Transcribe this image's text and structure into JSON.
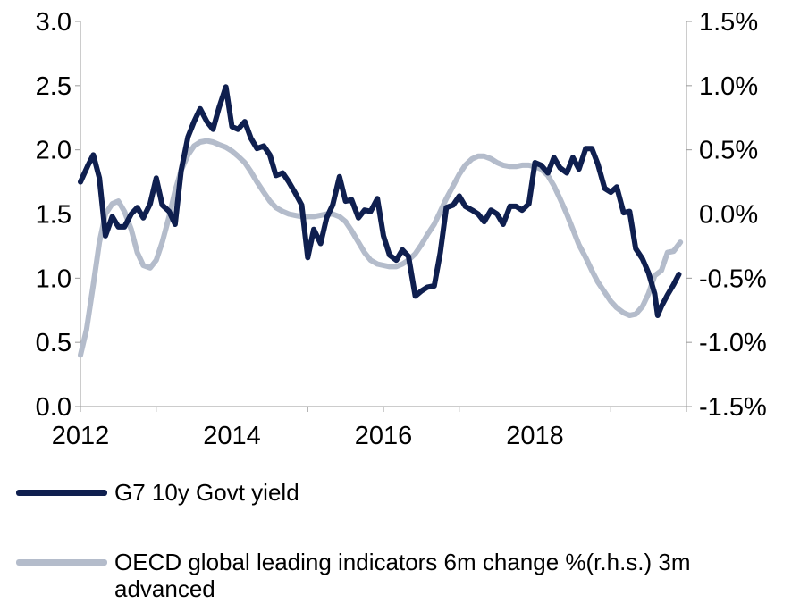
{
  "chart_data": {
    "type": "line",
    "x_ticks": [
      "2012",
      "2014",
      "2016",
      "2018"
    ],
    "y_left": {
      "ticks": [
        "0.0",
        "0.5",
        "1.0",
        "1.5",
        "2.0",
        "2.5",
        "3.0"
      ],
      "ylim": [
        0,
        3
      ]
    },
    "y_right": {
      "ticks": [
        "-1.5%",
        "-1.0%",
        "-0.5%",
        "0.0%",
        "0.5%",
        "1.0%",
        "1.5%"
      ],
      "ylim": [
        -1.5,
        1.5
      ]
    },
    "xlim": [
      2012,
      2020
    ],
    "grid": false,
    "legend_position": "bottom",
    "series": [
      {
        "name": "G7 10y Govt yield",
        "axis": "left",
        "color": "#0f1f4f",
        "points": [
          [
            2012.0,
            1.75
          ],
          [
            2012.1,
            1.88
          ],
          [
            2012.17,
            1.96
          ],
          [
            2012.25,
            1.78
          ],
          [
            2012.33,
            1.33
          ],
          [
            2012.42,
            1.48
          ],
          [
            2012.5,
            1.4
          ],
          [
            2012.58,
            1.4
          ],
          [
            2012.67,
            1.5
          ],
          [
            2012.75,
            1.55
          ],
          [
            2012.83,
            1.47
          ],
          [
            2012.92,
            1.58
          ],
          [
            2013.0,
            1.78
          ],
          [
            2013.08,
            1.57
          ],
          [
            2013.17,
            1.52
          ],
          [
            2013.25,
            1.42
          ],
          [
            2013.33,
            1.84
          ],
          [
            2013.42,
            2.1
          ],
          [
            2013.5,
            2.22
          ],
          [
            2013.58,
            2.32
          ],
          [
            2013.67,
            2.22
          ],
          [
            2013.75,
            2.16
          ],
          [
            2013.83,
            2.33
          ],
          [
            2013.92,
            2.49
          ],
          [
            2014.0,
            2.18
          ],
          [
            2014.08,
            2.16
          ],
          [
            2014.17,
            2.22
          ],
          [
            2014.25,
            2.09
          ],
          [
            2014.33,
            2.01
          ],
          [
            2014.42,
            2.03
          ],
          [
            2014.5,
            1.96
          ],
          [
            2014.58,
            1.8
          ],
          [
            2014.67,
            1.82
          ],
          [
            2014.75,
            1.75
          ],
          [
            2014.83,
            1.67
          ],
          [
            2014.92,
            1.57
          ],
          [
            2015.0,
            1.16
          ],
          [
            2015.08,
            1.38
          ],
          [
            2015.17,
            1.27
          ],
          [
            2015.25,
            1.47
          ],
          [
            2015.33,
            1.57
          ],
          [
            2015.42,
            1.79
          ],
          [
            2015.5,
            1.6
          ],
          [
            2015.58,
            1.61
          ],
          [
            2015.67,
            1.47
          ],
          [
            2015.75,
            1.53
          ],
          [
            2015.83,
            1.52
          ],
          [
            2015.92,
            1.62
          ],
          [
            2016.0,
            1.33
          ],
          [
            2016.08,
            1.18
          ],
          [
            2016.17,
            1.14
          ],
          [
            2016.25,
            1.22
          ],
          [
            2016.33,
            1.17
          ],
          [
            2016.42,
            0.86
          ],
          [
            2016.5,
            0.9
          ],
          [
            2016.58,
            0.93
          ],
          [
            2016.67,
            0.94
          ],
          [
            2016.75,
            1.2
          ],
          [
            2016.83,
            1.55
          ],
          [
            2016.92,
            1.57
          ],
          [
            2017.0,
            1.64
          ],
          [
            2017.08,
            1.56
          ],
          [
            2017.17,
            1.53
          ],
          [
            2017.25,
            1.5
          ],
          [
            2017.33,
            1.44
          ],
          [
            2017.42,
            1.53
          ],
          [
            2017.5,
            1.5
          ],
          [
            2017.58,
            1.42
          ],
          [
            2017.67,
            1.56
          ],
          [
            2017.75,
            1.56
          ],
          [
            2017.83,
            1.53
          ],
          [
            2017.92,
            1.58
          ],
          [
            2018.0,
            1.9
          ],
          [
            2018.08,
            1.88
          ],
          [
            2018.17,
            1.82
          ],
          [
            2018.25,
            1.94
          ],
          [
            2018.33,
            1.86
          ],
          [
            2018.42,
            1.82
          ],
          [
            2018.5,
            1.94
          ],
          [
            2018.58,
            1.85
          ],
          [
            2018.67,
            2.01
          ],
          [
            2018.75,
            2.01
          ],
          [
            2018.83,
            1.89
          ],
          [
            2018.92,
            1.7
          ],
          [
            2019.0,
            1.67
          ],
          [
            2019.08,
            1.71
          ],
          [
            2019.17,
            1.51
          ],
          [
            2019.25,
            1.52
          ],
          [
            2019.33,
            1.23
          ],
          [
            2019.42,
            1.15
          ],
          [
            2019.5,
            1.04
          ],
          [
            2019.58,
            0.88
          ],
          [
            2019.62,
            0.71
          ],
          [
            2019.67,
            0.78
          ],
          [
            2019.75,
            0.87
          ],
          [
            2019.83,
            0.95
          ],
          [
            2019.9,
            1.03
          ]
        ]
      },
      {
        "name": "OECD global leading indicators 6m change %(r.h.s.) 3m advanced",
        "axis": "right",
        "color": "#b4bccb",
        "points": [
          [
            2012.0,
            -1.1
          ],
          [
            2012.08,
            -0.9
          ],
          [
            2012.17,
            -0.55
          ],
          [
            2012.25,
            -0.22
          ],
          [
            2012.33,
            0.0
          ],
          [
            2012.42,
            0.08
          ],
          [
            2012.5,
            0.1
          ],
          [
            2012.58,
            0.02
          ],
          [
            2012.67,
            -0.12
          ],
          [
            2012.75,
            -0.3
          ],
          [
            2012.83,
            -0.4
          ],
          [
            2012.92,
            -0.42
          ],
          [
            2013.0,
            -0.36
          ],
          [
            2013.08,
            -0.22
          ],
          [
            2013.17,
            -0.02
          ],
          [
            2013.25,
            0.18
          ],
          [
            2013.33,
            0.34
          ],
          [
            2013.42,
            0.46
          ],
          [
            2013.5,
            0.53
          ],
          [
            2013.58,
            0.56
          ],
          [
            2013.67,
            0.57
          ],
          [
            2013.75,
            0.56
          ],
          [
            2013.83,
            0.54
          ],
          [
            2013.92,
            0.52
          ],
          [
            2014.0,
            0.49
          ],
          [
            2014.08,
            0.45
          ],
          [
            2014.17,
            0.4
          ],
          [
            2014.25,
            0.33
          ],
          [
            2014.33,
            0.25
          ],
          [
            2014.42,
            0.17
          ],
          [
            2014.5,
            0.1
          ],
          [
            2014.58,
            0.05
          ],
          [
            2014.67,
            0.02
          ],
          [
            2014.75,
            0.0
          ],
          [
            2014.83,
            -0.01
          ],
          [
            2014.92,
            -0.02
          ],
          [
            2015.0,
            -0.02
          ],
          [
            2015.08,
            -0.02
          ],
          [
            2015.17,
            -0.01
          ],
          [
            2015.25,
            0.0
          ],
          [
            2015.33,
            0.0
          ],
          [
            2015.42,
            -0.02
          ],
          [
            2015.5,
            -0.06
          ],
          [
            2015.58,
            -0.13
          ],
          [
            2015.67,
            -0.22
          ],
          [
            2015.75,
            -0.3
          ],
          [
            2015.83,
            -0.36
          ],
          [
            2015.92,
            -0.39
          ],
          [
            2016.0,
            -0.4
          ],
          [
            2016.08,
            -0.41
          ],
          [
            2016.17,
            -0.41
          ],
          [
            2016.25,
            -0.39
          ],
          [
            2016.33,
            -0.36
          ],
          [
            2016.42,
            -0.31
          ],
          [
            2016.5,
            -0.24
          ],
          [
            2016.58,
            -0.16
          ],
          [
            2016.67,
            -0.08
          ],
          [
            2016.75,
            0.02
          ],
          [
            2016.83,
            0.12
          ],
          [
            2016.92,
            0.22
          ],
          [
            2017.0,
            0.31
          ],
          [
            2017.08,
            0.38
          ],
          [
            2017.17,
            0.43
          ],
          [
            2017.25,
            0.45
          ],
          [
            2017.33,
            0.45
          ],
          [
            2017.42,
            0.43
          ],
          [
            2017.5,
            0.4
          ],
          [
            2017.58,
            0.38
          ],
          [
            2017.67,
            0.37
          ],
          [
            2017.75,
            0.37
          ],
          [
            2017.83,
            0.38
          ],
          [
            2017.92,
            0.38
          ],
          [
            2018.0,
            0.37
          ],
          [
            2018.08,
            0.35
          ],
          [
            2018.17,
            0.3
          ],
          [
            2018.25,
            0.22
          ],
          [
            2018.33,
            0.12
          ],
          [
            2018.42,
            0.0
          ],
          [
            2018.5,
            -0.12
          ],
          [
            2018.58,
            -0.24
          ],
          [
            2018.67,
            -0.34
          ],
          [
            2018.75,
            -0.44
          ],
          [
            2018.83,
            -0.53
          ],
          [
            2018.92,
            -0.61
          ],
          [
            2019.0,
            -0.68
          ],
          [
            2019.08,
            -0.73
          ],
          [
            2019.17,
            -0.77
          ],
          [
            2019.25,
            -0.79
          ],
          [
            2019.33,
            -0.78
          ],
          [
            2019.42,
            -0.72
          ],
          [
            2019.5,
            -0.62
          ],
          [
            2019.58,
            -0.48
          ],
          [
            2019.67,
            -0.44
          ],
          [
            2019.75,
            -0.3
          ],
          [
            2019.83,
            -0.29
          ],
          [
            2019.92,
            -0.22
          ]
        ]
      }
    ]
  }
}
